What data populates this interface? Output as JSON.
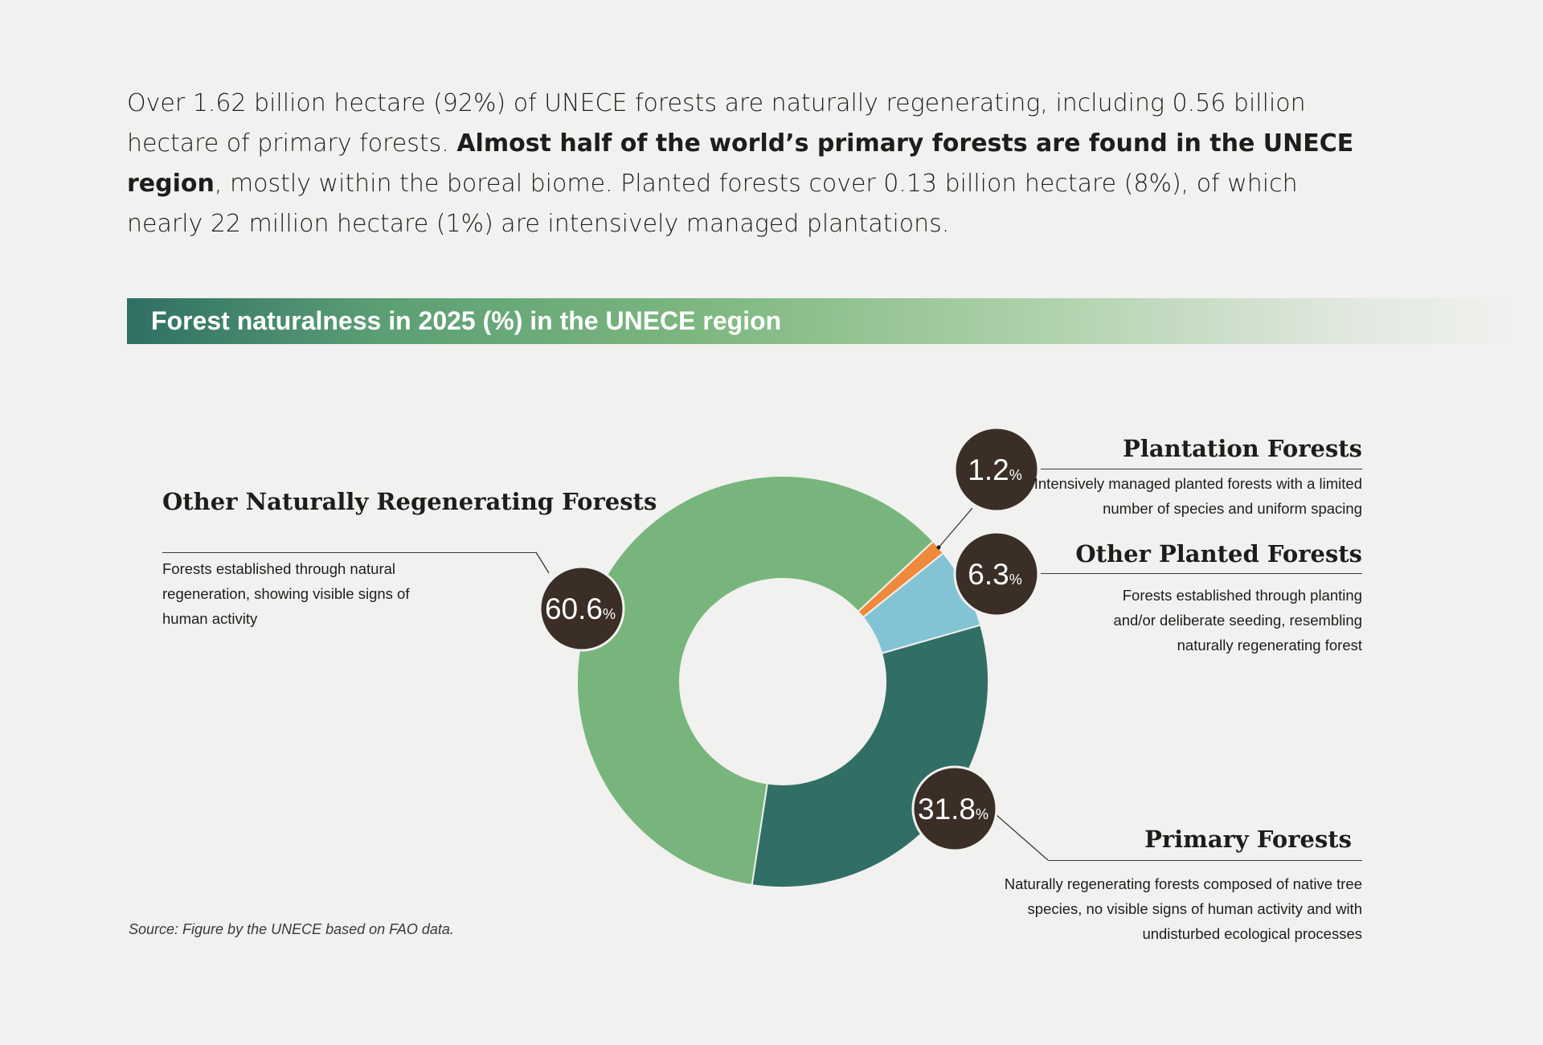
{
  "intro": {
    "part1": "Over 1.62 billion hectare (92%) of UNECE forests are naturally regenerating, including 0.56 billion hectare of primary forests. ",
    "bold": "Almost half of the world’s primary forests are found in the UNECE region",
    "part2": ", mostly within the boreal biome. Planted forests cover 0.13 billion hectare (8%), of which nearly 22 million hectare (1%) are intensively managed plantations."
  },
  "source": "Source: Figure by the UNECE based on FAO data.",
  "colors": {
    "other_naturally_regenerating": "#78b57c",
    "plantation": "#ef8a3a",
    "other_planted": "#82c4d4",
    "primary": "#316f66",
    "badge": "#3a2e27"
  },
  "chart_data": {
    "type": "pie",
    "subtype": "donut",
    "title": "Forest naturalness in 2025 (%) in the UNECE region",
    "unit": "%",
    "slices": [
      {
        "name": "Plantation Forests",
        "value": 1.2,
        "label": "1.2",
        "description": "Intensively managed planted forests with a limited number of species and uniform spacing"
      },
      {
        "name": "Other Planted Forests",
        "value": 6.3,
        "label": "6.3",
        "description": "Forests established through planting and/or deliberate seeding, resembling naturally regenerating forest"
      },
      {
        "name": "Primary Forests",
        "value": 31.8,
        "label": "31.8",
        "description": "Naturally regenerating forests composed of native tree species, no visible signs of human activity and with undisturbed ecological processes"
      },
      {
        "name": "Other Naturally Regenerating Forests",
        "value": 60.6,
        "label": "60.6",
        "description": "Forests established through natural regeneration, showing visible signs of human activity"
      }
    ]
  }
}
